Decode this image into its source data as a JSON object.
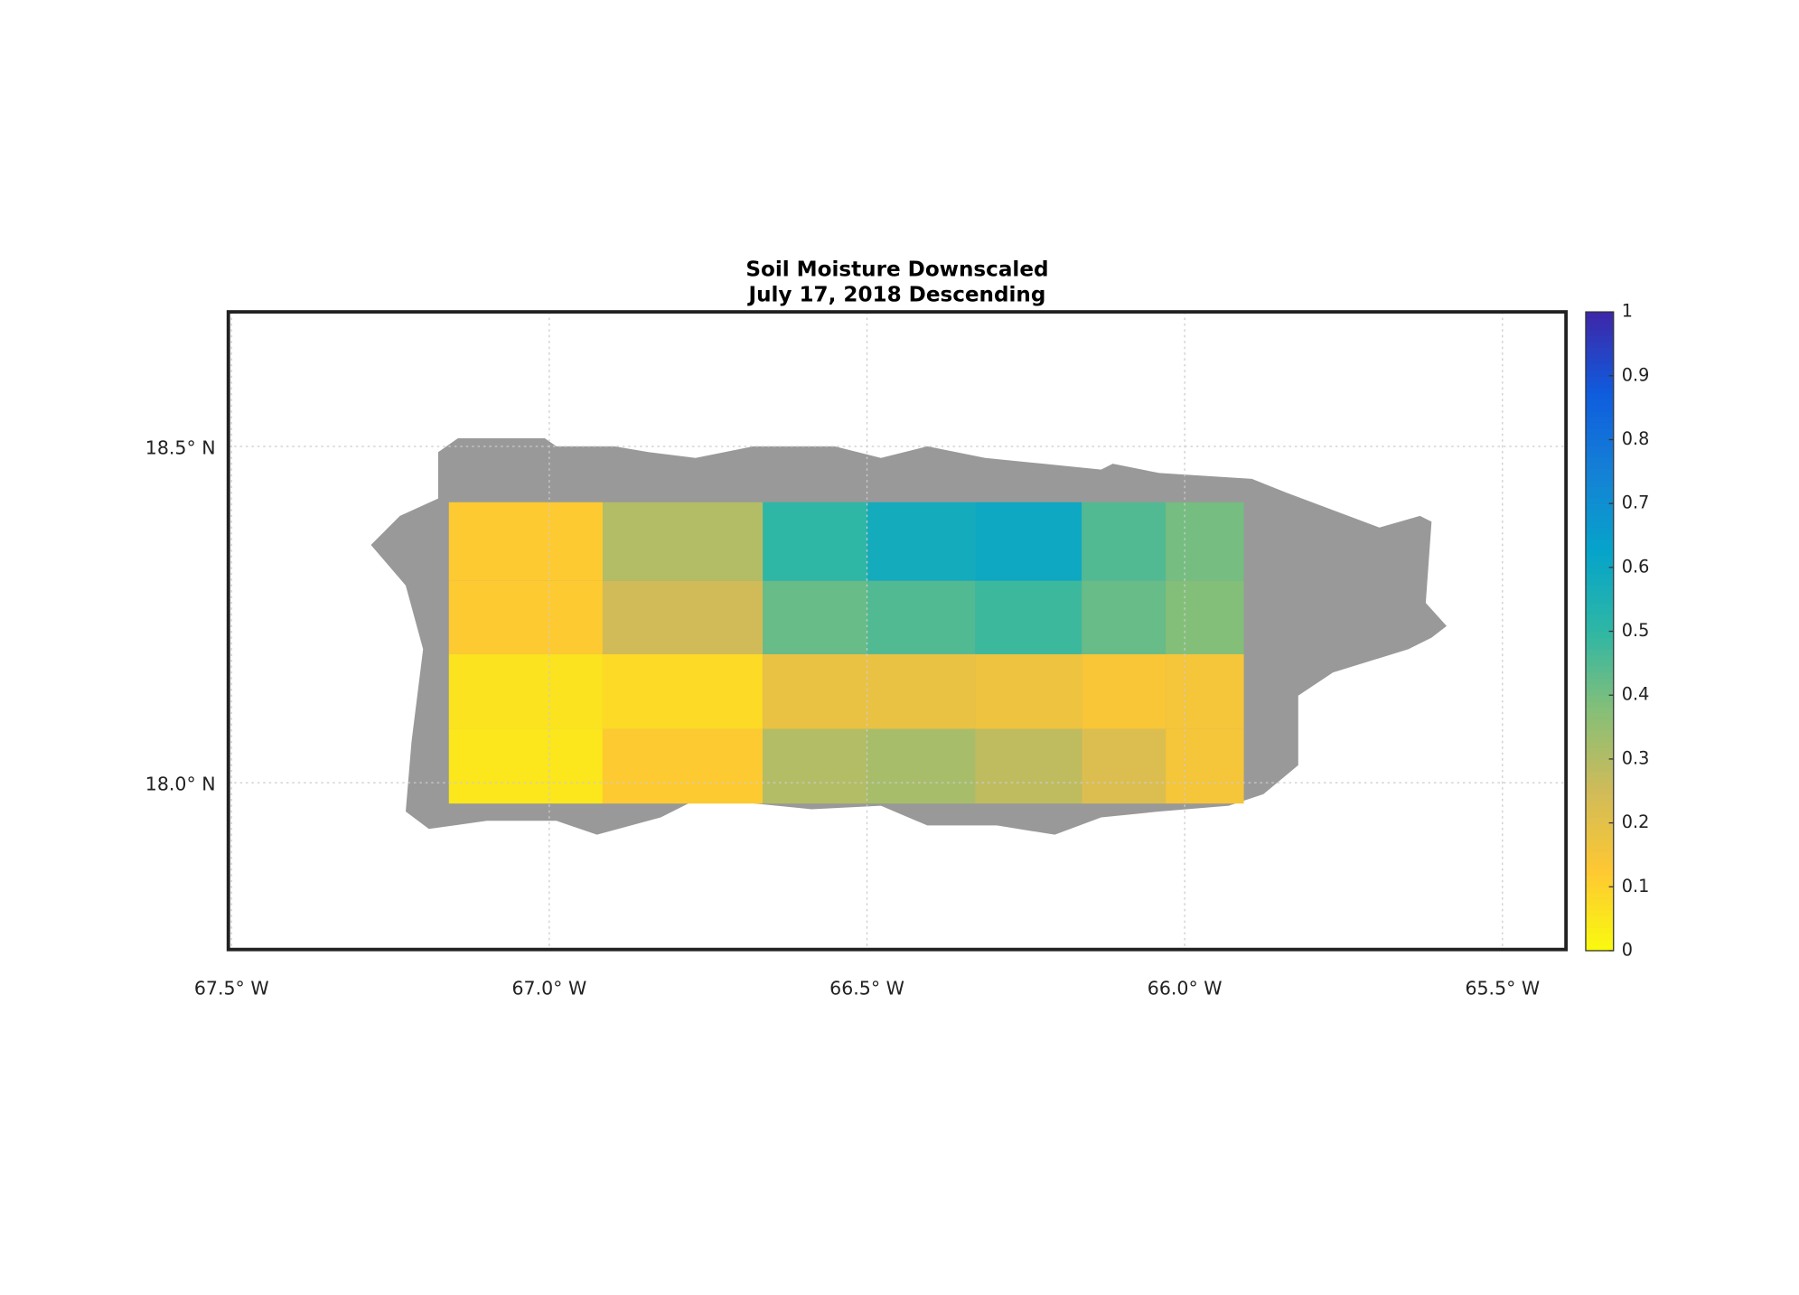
{
  "chart_data": {
    "type": "heatmap",
    "title": "Soil Moisture Downscaled",
    "subtitle": "July 17, 2018 Descending",
    "x_edges": [
      -67.158,
      -66.916,
      -66.664,
      -66.5,
      -66.33,
      -66.162,
      -66.03,
      -65.907
    ],
    "y_edges": [
      18.417,
      18.3,
      18.191,
      18.08,
      17.969
    ],
    "values": [
      [
        0.12,
        0.3,
        0.5,
        0.58,
        0.6,
        0.45,
        0.4
      ],
      [
        0.12,
        0.25,
        0.42,
        0.45,
        0.48,
        0.42,
        0.38
      ],
      [
        0.06,
        0.08,
        0.18,
        0.18,
        0.17,
        0.14,
        0.15
      ],
      [
        0.05,
        0.12,
        0.3,
        0.32,
        0.28,
        0.22,
        0.15
      ]
    ],
    "xlim": [
      -67.505,
      -65.4
    ],
    "ylim": [
      17.752,
      18.7
    ],
    "xticks": [
      {
        "value": -67.5,
        "label": "67.5° W"
      },
      {
        "value": -67.0,
        "label": "67.0° W"
      },
      {
        "value": -66.5,
        "label": "66.5° W"
      },
      {
        "value": -66.0,
        "label": "66.0° W"
      },
      {
        "value": -65.5,
        "label": "65.5° W"
      }
    ],
    "yticks": [
      {
        "value": 18.0,
        "label": "18.0° N"
      },
      {
        "value": 18.5,
        "label": "18.5° N"
      }
    ],
    "grid": true,
    "land_color": "#999999",
    "colormap": [
      "#f9fb0e",
      "#fec832",
      "#d1bb59",
      "#87bf77",
      "#2eb7a4",
      "#06a4ca",
      "#1481d6",
      "#0f5cdd",
      "#3e26a8"
    ],
    "clim": [
      0,
      1
    ],
    "cticks": [
      0,
      0.1,
      0.2,
      0.3,
      0.4,
      0.5,
      0.6,
      0.7,
      0.8,
      0.9,
      1
    ]
  }
}
